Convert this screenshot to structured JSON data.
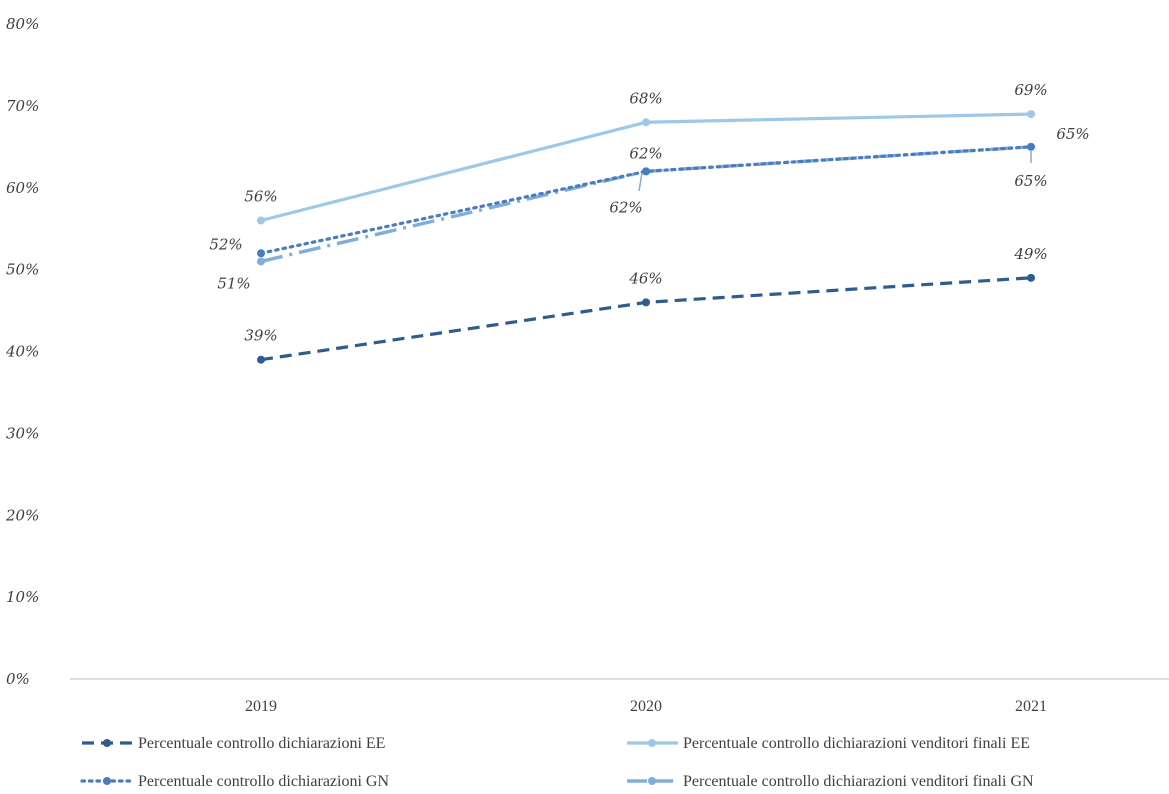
{
  "chart_data": {
    "type": "line",
    "title": "",
    "xlabel": "",
    "ylabel": "",
    "categories": [
      "2019",
      "2020",
      "2021"
    ],
    "ylim": [
      0,
      80
    ],
    "yticks": [
      "0%",
      "10%",
      "20%",
      "30%",
      "40%",
      "50%",
      "60%",
      "70%",
      "80%"
    ],
    "grid": false,
    "legend_position": "bottom",
    "series": [
      {
        "name": "Percentuale controllo dichiarazioni EE",
        "values": [
          39,
          46,
          49
        ],
        "labels": [
          "39%",
          "46%",
          "49%"
        ],
        "color": "#2f5c8f",
        "style": "dashed"
      },
      {
        "name": "Percentuale controllo dichiarazioni venditori finali EE",
        "values": [
          56,
          68,
          69
        ],
        "labels": [
          "56%",
          "68%",
          "69%"
        ],
        "color": "#9ec8e8",
        "style": "solid"
      },
      {
        "name": "Percentuale controllo dichiarazioni GN",
        "values": [
          52,
          62,
          65
        ],
        "labels": [
          "52%",
          "62%",
          "65%"
        ],
        "color": "#4a7cbf",
        "style": "dotted"
      },
      {
        "name": "Percentuale controllo dichiarazioni venditori finali GN",
        "values": [
          51,
          62,
          65
        ],
        "labels": [
          "51%",
          "62%",
          "65%"
        ],
        "color": "#7eaed9",
        "style": "dashdot"
      }
    ]
  }
}
